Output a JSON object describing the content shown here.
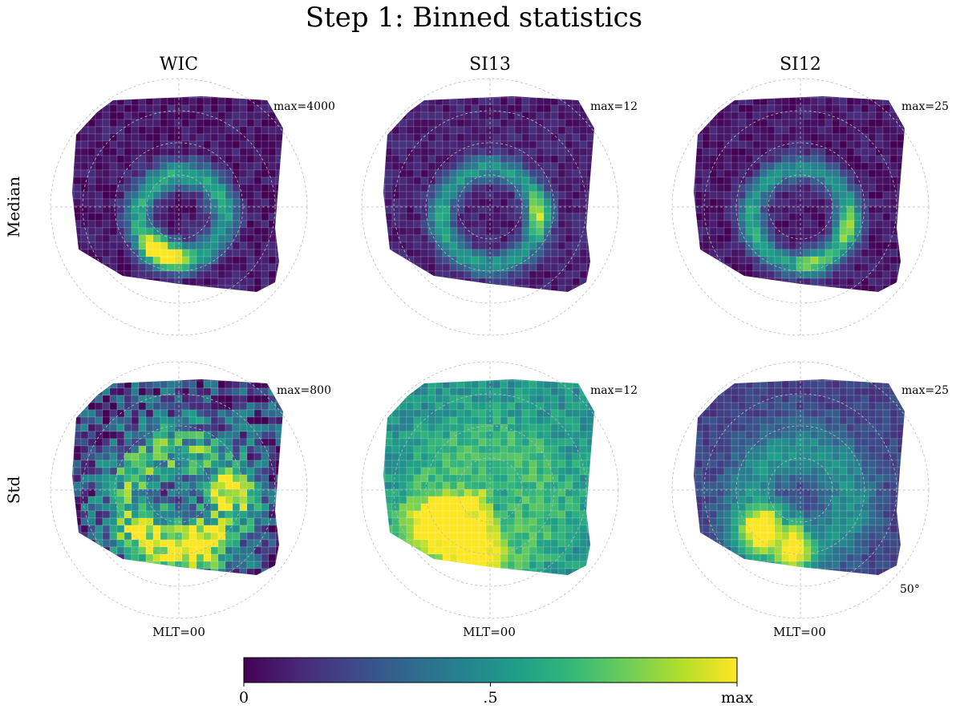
{
  "title": "Step 1: Binned statistics",
  "columns": [
    "WIC",
    "SI13",
    "SI12"
  ],
  "rows": [
    "Median",
    "Std"
  ],
  "max_labels": [
    [
      "max=4000",
      "max=12",
      "max=25"
    ],
    [
      "max=800",
      "max=12",
      "max=25"
    ]
  ],
  "mlt_label": "MLT=00",
  "lat_label": "50°",
  "colorbar": {
    "ticks": [
      {
        "value": 0,
        "label": "0"
      },
      {
        "value": 0.5,
        "label": ".5"
      },
      {
        "value": 1,
        "label": "max"
      }
    ],
    "colormap": "viridis",
    "colors": [
      "#440154",
      "#482878",
      "#3e4989",
      "#31688e",
      "#26828e",
      "#1f9e89",
      "#35b779",
      "#6ece58",
      "#b5de2b",
      "#fde725"
    ]
  },
  "chart_data": {
    "type": "heatmap",
    "projection": "polar (magnetic latitude / MLT)",
    "grid": true,
    "lat_circles_deg": [
      80,
      70,
      60,
      50
    ],
    "value_range": [
      0,
      1
    ],
    "panels": [
      {
        "row": "Median",
        "column": "WIC",
        "max": 4000,
        "oval": {
          "center_colat": 13,
          "center_mlt": 1.2,
          "width_deg": 4.5,
          "base": 0.06,
          "peak": 0.55,
          "peaks": [
            {
              "mlt": 23.3,
              "level": 1.0,
              "spread": 1.6
            },
            {
              "mlt": 22.0,
              "level": 0.9,
              "spread": 1.4
            },
            {
              "mlt": 3.3,
              "level": 0.45,
              "spread": 2.0
            },
            {
              "mlt": 5.2,
              "level": 0.55,
              "spread": 1.8
            }
          ],
          "noise": 0.08,
          "seed": 11
        }
      },
      {
        "row": "Median",
        "column": "SI13",
        "max": 12,
        "oval": {
          "center_colat": 15,
          "center_mlt": 0.0,
          "width_deg": 4.0,
          "base": 0.08,
          "peak": 0.45,
          "peaks": [
            {
              "mlt": 5.5,
              "level": 0.85,
              "spread": 1.5
            },
            {
              "mlt": 19.0,
              "level": 0.55,
              "spread": 1.5
            },
            {
              "mlt": 1.5,
              "level": 0.45,
              "spread": 1.5
            }
          ],
          "noise": 0.07,
          "seed": 23
        }
      },
      {
        "row": "Median",
        "column": "SI12",
        "max": 25,
        "oval": {
          "center_colat": 15,
          "center_mlt": 0.0,
          "width_deg": 4.0,
          "base": 0.06,
          "peak": 0.45,
          "peaks": [
            {
              "mlt": 4.5,
              "level": 0.85,
              "spread": 1.6
            },
            {
              "mlt": 0.8,
              "level": 0.75,
              "spread": 1.3
            },
            {
              "mlt": 19.5,
              "level": 0.6,
              "spread": 1.6
            }
          ],
          "noise": 0.07,
          "seed": 37
        }
      },
      {
        "row": "Std",
        "column": "WIC",
        "max": 800,
        "oval": {
          "center_colat": 15,
          "center_mlt": 0.0,
          "width_deg": 9.0,
          "base": 0.2,
          "peak": 0.45,
          "peaks": [
            {
              "mlt": 0.5,
              "level": 0.9,
              "spread": 2.5
            },
            {
              "mlt": 6.0,
              "level": 0.9,
              "spread": 1.2
            },
            {
              "mlt": 21.0,
              "level": 0.7,
              "spread": 1.5
            }
          ],
          "noise": 0.28,
          "seed": 41
        }
      },
      {
        "row": "Std",
        "column": "SI13",
        "max": 12,
        "oval": {
          "center_colat": 14,
          "center_mlt": 0.0,
          "width_deg": 14.0,
          "base": 0.5,
          "peak": 0.2,
          "peaks": [
            {
              "mlt": 20.0,
              "level": 0.9,
              "spread": 1.4
            },
            {
              "mlt": 23.0,
              "level": 0.75,
              "spread": 1.5
            }
          ],
          "noise": 0.1,
          "seed": 53
        }
      },
      {
        "row": "Std",
        "column": "SI12",
        "max": 25,
        "oval": {
          "center_colat": 15,
          "center_mlt": 0.0,
          "width_deg": 9.0,
          "base": 0.2,
          "peak": 0.3,
          "peaks": [
            {
              "mlt": 21.0,
              "level": 1.0,
              "spread": 1.4
            },
            {
              "mlt": 23.6,
              "level": 0.95,
              "spread": 1.0
            }
          ],
          "noise": 0.07,
          "seed": 67
        }
      }
    ]
  }
}
